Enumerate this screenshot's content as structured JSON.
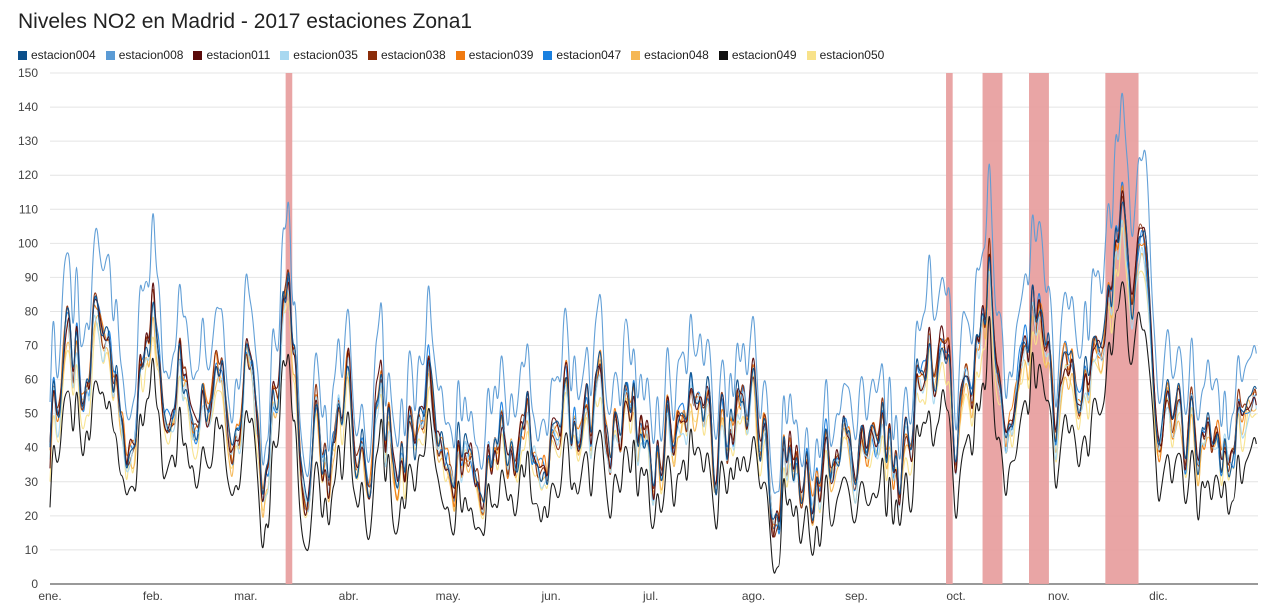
{
  "chart_data": {
    "type": "line",
    "title": "Niveles NO2 en Madrid - 2017 estaciones Zona1",
    "xlabel": "",
    "ylabel": "",
    "ylim": [
      0,
      150
    ],
    "yticks": [
      0,
      10,
      20,
      30,
      40,
      50,
      60,
      70,
      80,
      90,
      100,
      110,
      120,
      130,
      140,
      150
    ],
    "x_ticks": [
      "ene.",
      "feb.",
      "mar.",
      "abr.",
      "may.",
      "jun.",
      "jul.",
      "ago.",
      "sep.",
      "oct.",
      "nov.",
      "dic."
    ],
    "x_domain_days": [
      0,
      364
    ],
    "legend_position": "top",
    "grid": true,
    "highlight_day_ranges": [
      [
        71,
        73
      ],
      [
        270,
        272
      ],
      [
        281,
        287
      ],
      [
        295,
        301
      ],
      [
        318,
        328
      ]
    ],
    "highlight_color": "#e8a0a0",
    "series": [
      {
        "name": "estacion004",
        "color": "#0b4f8a",
        "scale": 1.0,
        "offset": 0,
        "seed": 4
      },
      {
        "name": "estacion008",
        "color": "#5b9bd5",
        "scale": 1.2,
        "offset": 5,
        "seed": 8
      },
      {
        "name": "estacion011",
        "color": "#5a0a0a",
        "scale": 1.0,
        "offset": 0,
        "seed": 11
      },
      {
        "name": "estacion035",
        "color": "#a8d8f0",
        "scale": 0.95,
        "offset": 0,
        "seed": 35
      },
      {
        "name": "estacion038",
        "color": "#8b2d0a",
        "scale": 1.0,
        "offset": 0,
        "seed": 38
      },
      {
        "name": "estacion039",
        "color": "#f07a10",
        "scale": 1.0,
        "offset": 0,
        "seed": 39
      },
      {
        "name": "estacion047",
        "color": "#1a80e0",
        "scale": 1.0,
        "offset": 0,
        "seed": 47
      },
      {
        "name": "estacion048",
        "color": "#f5b755",
        "scale": 0.95,
        "offset": 0,
        "seed": 48
      },
      {
        "name": "estacion049",
        "color": "#111111",
        "scale": 0.85,
        "offset": -8,
        "seed": 49
      },
      {
        "name": "estacion050",
        "color": "#f8e28a",
        "scale": 0.9,
        "offset": 0,
        "seed": 50
      }
    ],
    "base_profile_days": [
      0,
      5,
      10,
      15,
      20,
      25,
      31,
      36,
      40,
      45,
      50,
      55,
      59,
      64,
      68,
      72,
      76,
      80,
      85,
      90,
      95,
      100,
      105,
      110,
      115,
      120,
      125,
      130,
      135,
      140,
      145,
      151,
      156,
      160,
      165,
      170,
      175,
      181,
      186,
      190,
      195,
      200,
      205,
      212,
      218,
      224,
      230,
      236,
      243,
      250,
      256,
      262,
      268,
      273,
      278,
      283,
      288,
      293,
      298,
      303,
      308,
      313,
      318,
      322,
      326,
      330,
      334
    ],
    "base_profile_values": [
      48,
      72,
      60,
      75,
      55,
      40,
      85,
      38,
      70,
      45,
      62,
      40,
      70,
      30,
      55,
      90,
      25,
      48,
      35,
      58,
      28,
      52,
      30,
      45,
      60,
      25,
      45,
      35,
      50,
      30,
      48,
      38,
      55,
      35,
      60,
      40,
      55,
      30,
      45,
      40,
      65,
      35,
      48,
      55,
      25,
      40,
      30,
      45,
      30,
      45,
      35,
      55,
      75,
      45,
      60,
      95,
      50,
      55,
      95,
      40,
      65,
      55,
      75,
      110,
      90,
      100,
      45
    ]
  }
}
